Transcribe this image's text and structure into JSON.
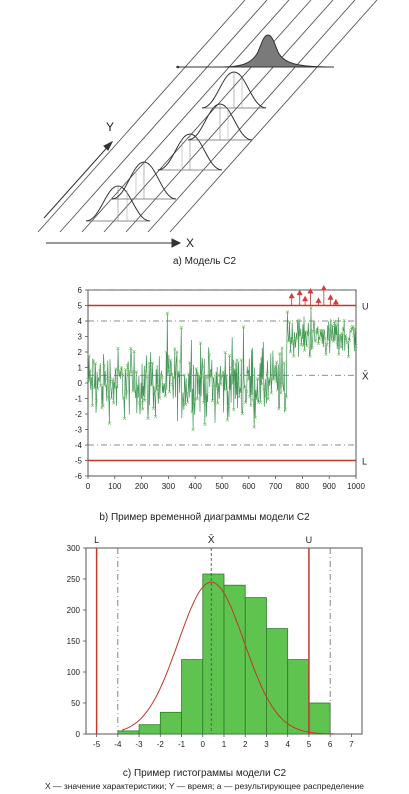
{
  "model": {
    "y_label": "Y",
    "x_label": "X",
    "caption": "a) Модель C2"
  },
  "time_chart": {
    "caption": "b) Пример временной диаграммы модели C2",
    "upper_label": "U",
    "lower_label": "L",
    "mean_label": "X̄",
    "chart_data": {
      "type": "line",
      "xlim": [
        0,
        1000
      ],
      "ylim": [
        -6,
        6
      ],
      "x_ticks": [
        "0",
        "100",
        "200",
        "300",
        "400",
        "500",
        "600",
        "700",
        "800",
        "900",
        "1000"
      ],
      "y_ticks": [
        "6",
        "5",
        "4",
        "3",
        "2",
        "1",
        "0",
        "-1",
        "-2",
        "-3",
        "-4",
        "-5",
        "-6"
      ],
      "upper_limit": 5,
      "lower_limit": -5,
      "dashed_lines": [
        6,
        4,
        0.5,
        -4
      ],
      "shift_at": 740,
      "segments": [
        {
          "x_from": 0,
          "x_to": 740,
          "mean": 0.0,
          "range": [
            -4.5,
            4.5
          ]
        },
        {
          "x_from": 740,
          "x_to": 1000,
          "mean": 3.0,
          "range": [
            1.0,
            6.0
          ]
        }
      ],
      "alarm_points": [
        {
          "x": 760,
          "y": 5.6
        },
        {
          "x": 790,
          "y": 5.8
        },
        {
          "x": 810,
          "y": 5.4
        },
        {
          "x": 830,
          "y": 5.9
        },
        {
          "x": 860,
          "y": 5.3
        },
        {
          "x": 880,
          "y": 6.1
        },
        {
          "x": 905,
          "y": 5.5
        },
        {
          "x": 925,
          "y": 5.2
        }
      ]
    }
  },
  "histogram": {
    "caption": "c) Пример гистограммы модели C2",
    "legend": "X — значение характеристики; Y — время; a — результирующее распределение",
    "lower_label": "L",
    "upper_label": "U",
    "mean_label": "X̄",
    "chart_data": {
      "type": "bar",
      "xlim": [
        -5.5,
        7.5
      ],
      "ylim": [
        0,
        300
      ],
      "x_ticks": [
        "-5",
        "-4",
        "-3",
        "-2",
        "-1",
        "0",
        "1",
        "2",
        "3",
        "4",
        "5",
        "6",
        "7"
      ],
      "y_ticks": [
        "300",
        "250",
        "200",
        "150",
        "100",
        "50",
        "0"
      ],
      "bin_edges": [
        -4,
        -3,
        -2,
        -1,
        0,
        1,
        2,
        3,
        4,
        5,
        6
      ],
      "values": [
        5,
        15,
        35,
        120,
        258,
        240,
        220,
        170,
        120,
        50,
        5
      ],
      "lower_limit": -5,
      "upper_limit": 5,
      "mean": 0.4,
      "dashed_lines": [
        -4,
        6
      ]
    }
  }
}
